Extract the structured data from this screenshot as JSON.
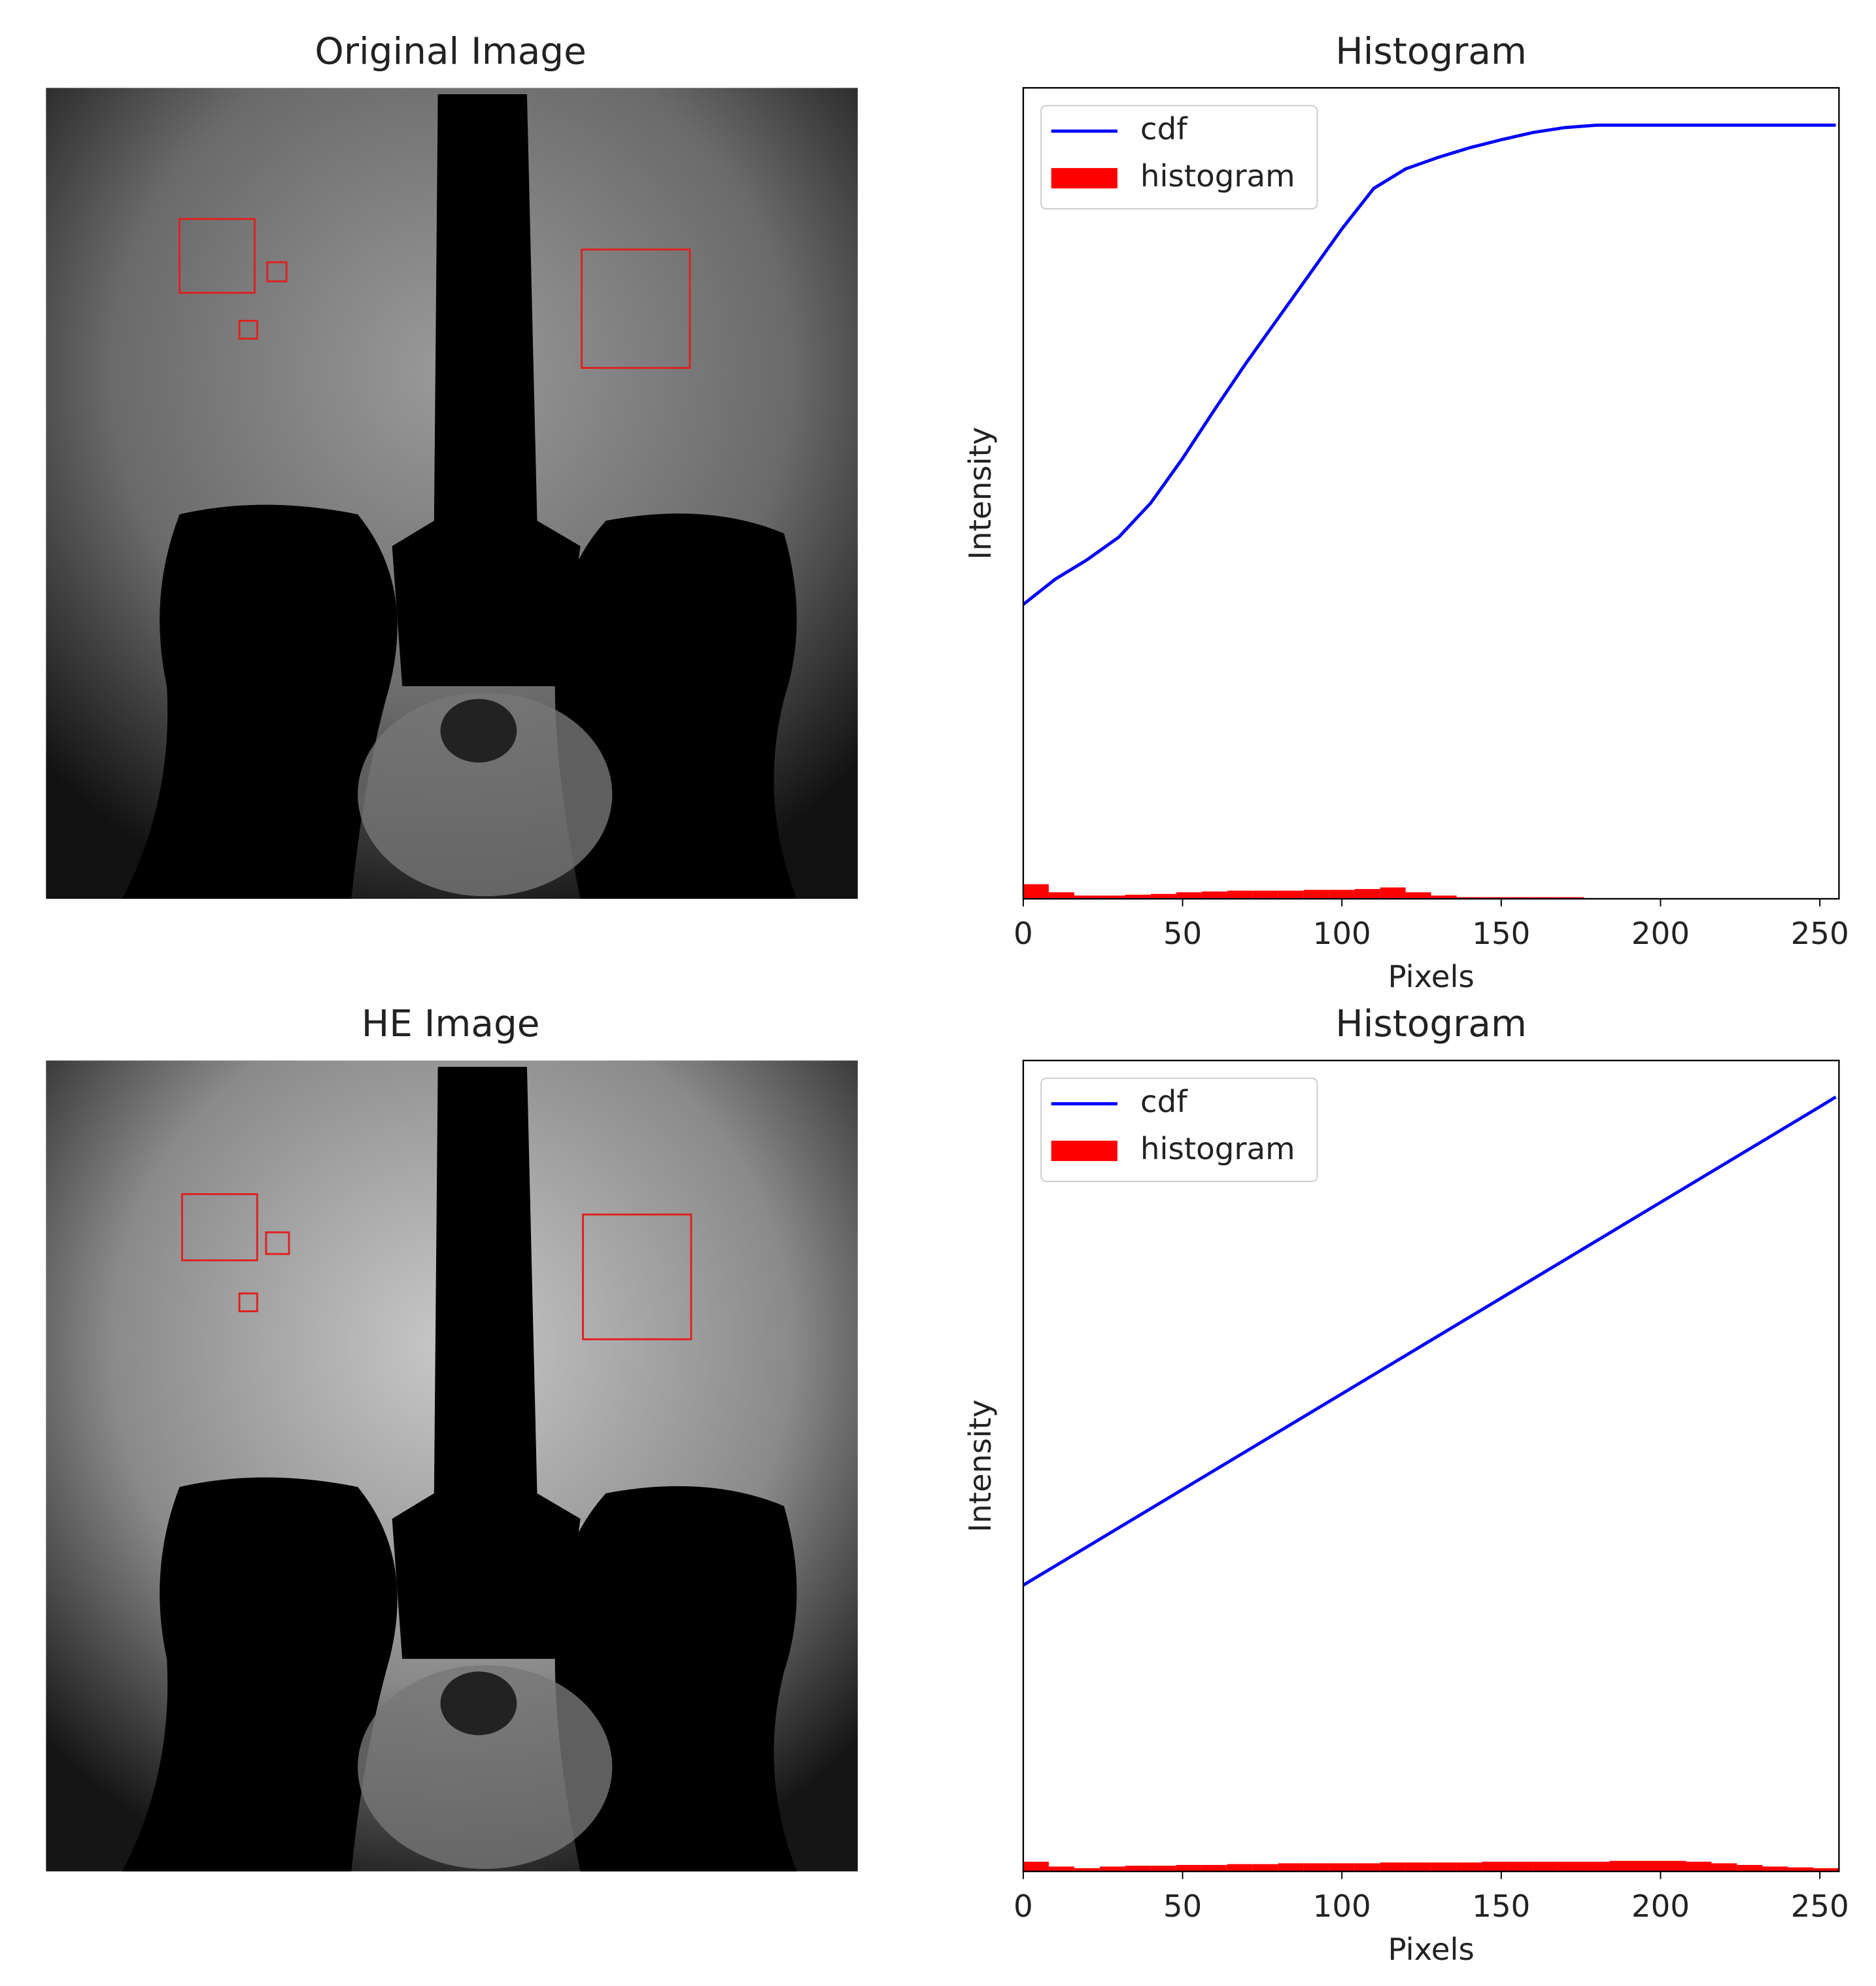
{
  "panels": [
    {
      "title": "Original Image"
    },
    {
      "title": "HE Image"
    }
  ],
  "chart_data": [
    {
      "type": "line",
      "title": "Histogram",
      "xlabel": "Pixels",
      "ylabel": "Intensity",
      "xlim": [
        0,
        256
      ],
      "ylim": [
        0,
        1
      ],
      "xticks": [
        0,
        50,
        100,
        150,
        200,
        250
      ],
      "legend": "upper left",
      "series": [
        {
          "name": "cdf",
          "color": "#0000ff",
          "type": "line",
          "x": [
            0,
            10,
            20,
            30,
            40,
            50,
            60,
            70,
            80,
            90,
            100,
            110,
            120,
            130,
            140,
            150,
            160,
            170,
            180,
            190,
            200,
            210,
            220,
            230,
            240,
            250,
            255
          ],
          "values": [
            0.363,
            0.394,
            0.418,
            0.446,
            0.488,
            0.543,
            0.603,
            0.661,
            0.716,
            0.771,
            0.826,
            0.876,
            0.9,
            0.914,
            0.926,
            0.936,
            0.945,
            0.951,
            0.954,
            0.954,
            0.954,
            0.954,
            0.954,
            0.954,
            0.954,
            0.954,
            0.954
          ]
        },
        {
          "name": "histogram",
          "color": "#ff0000",
          "type": "histogram",
          "bins": [
            0,
            8,
            16,
            24,
            32,
            40,
            48,
            56,
            64,
            72,
            80,
            88,
            96,
            104,
            112,
            120,
            128,
            136,
            144,
            152,
            160,
            168,
            176
          ],
          "values": [
            0.018,
            0.008,
            0.004,
            0.004,
            0.005,
            0.006,
            0.008,
            0.009,
            0.01,
            0.01,
            0.01,
            0.011,
            0.011,
            0.012,
            0.014,
            0.008,
            0.004,
            0.002,
            0.002,
            0.002,
            0.002,
            0.002
          ]
        }
      ]
    },
    {
      "type": "line",
      "title": "Histogram",
      "xlabel": "Pixels",
      "ylabel": "Intensity",
      "xlim": [
        0,
        256
      ],
      "ylim": [
        0,
        1
      ],
      "xticks": [
        0,
        50,
        100,
        150,
        200,
        250
      ],
      "legend": "upper left",
      "series": [
        {
          "name": "cdf",
          "color": "#0000ff",
          "type": "line",
          "x": [
            0,
            25,
            50,
            75,
            100,
            125,
            150,
            175,
            200,
            225,
            250,
            255
          ],
          "values": [
            0.353,
            0.412,
            0.471,
            0.53,
            0.589,
            0.648,
            0.707,
            0.766,
            0.825,
            0.884,
            0.943,
            0.955
          ]
        },
        {
          "name": "histogram",
          "color": "#ff0000",
          "type": "histogram",
          "bins": [
            0,
            8,
            16,
            24,
            32,
            40,
            48,
            56,
            64,
            72,
            80,
            88,
            96,
            104,
            112,
            120,
            128,
            136,
            144,
            152,
            160,
            168,
            176,
            184,
            192,
            200,
            208,
            216,
            224,
            232,
            240,
            248,
            256
          ],
          "values": [
            0.012,
            0.006,
            0.004,
            0.006,
            0.007,
            0.007,
            0.008,
            0.008,
            0.009,
            0.009,
            0.01,
            0.01,
            0.01,
            0.01,
            0.011,
            0.011,
            0.011,
            0.011,
            0.012,
            0.012,
            0.012,
            0.012,
            0.012,
            0.013,
            0.013,
            0.013,
            0.012,
            0.01,
            0.008,
            0.006,
            0.005,
            0.004
          ]
        }
      ]
    }
  ]
}
